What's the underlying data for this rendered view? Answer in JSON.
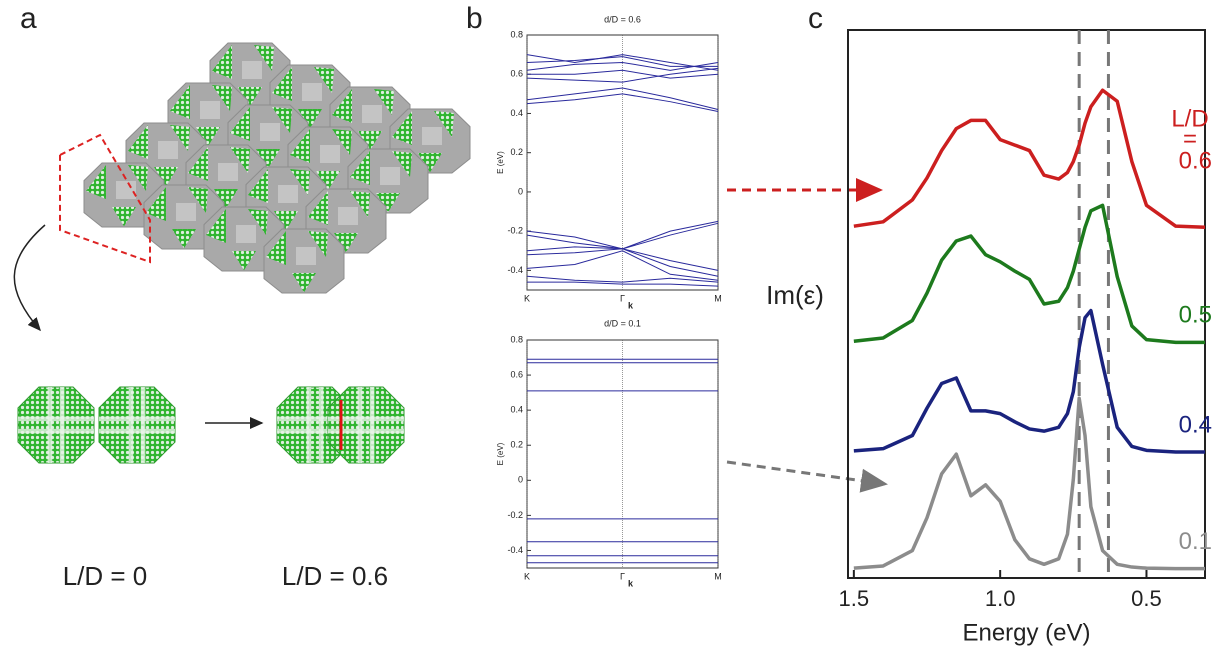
{
  "panel_labels": [
    "a",
    "b",
    "c"
  ],
  "panel_a": {
    "labels": [
      "L/D = 0",
      "L/D = 0.6"
    ]
  },
  "chart_data": [
    {
      "type": "line",
      "title": "d/D = 0.6",
      "y_label": "E (eV)",
      "x_label": "k",
      "color": "#2a2a9c",
      "grid": "x",
      "x": [
        0,
        0.5,
        1,
        1.5,
        2
      ],
      "xlim": [
        0,
        2
      ],
      "xticks": [
        {
          "value": 0,
          "label": "K"
        },
        {
          "value": 1,
          "label": "Γ"
        },
        {
          "value": 2,
          "label": "M"
        }
      ],
      "ylim": [
        -0.5,
        0.8
      ],
      "yticks": [
        -0.4,
        -0.2,
        0,
        0.2,
        0.4,
        0.6,
        0.8
      ],
      "series": [
        {
          "values": [
            0.7,
            0.66,
            0.7,
            0.66,
            0.62
          ]
        },
        {
          "values": [
            0.66,
            0.67,
            0.69,
            0.64,
            0.64
          ]
        },
        {
          "values": [
            0.62,
            0.65,
            0.66,
            0.62,
            0.66
          ]
        },
        {
          "values": [
            0.6,
            0.6,
            0.62,
            0.58,
            0.6
          ]
        },
        {
          "values": [
            0.58,
            0.57,
            0.56,
            0.6,
            0.63
          ]
        },
        {
          "values": [
            0.47,
            0.5,
            0.53,
            0.48,
            0.42
          ]
        },
        {
          "values": [
            0.45,
            0.47,
            0.5,
            0.46,
            0.41
          ]
        },
        {
          "values": [
            -0.2,
            -0.23,
            -0.29,
            -0.2,
            -0.15
          ]
        },
        {
          "values": [
            -0.22,
            -0.26,
            -0.29,
            -0.22,
            -0.16
          ]
        },
        {
          "values": [
            -0.3,
            -0.28,
            -0.29,
            -0.35,
            -0.4
          ]
        },
        {
          "values": [
            -0.32,
            -0.31,
            -0.29,
            -0.38,
            -0.43
          ]
        },
        {
          "values": [
            -0.39,
            -0.37,
            -0.3,
            -0.42,
            -0.45
          ]
        },
        {
          "values": [
            -0.43,
            -0.45,
            -0.46,
            -0.44,
            -0.46
          ]
        },
        {
          "values": [
            -0.46,
            -0.46,
            -0.47,
            -0.47,
            -0.48
          ]
        }
      ]
    },
    {
      "type": "line",
      "title": "d/D = 0.1",
      "y_label": "E (eV)",
      "x_label": "k",
      "color": "#2a2a9c",
      "grid": "x",
      "x": [
        0,
        1,
        2
      ],
      "xlim": [
        0,
        2
      ],
      "xticks": [
        {
          "value": 0,
          "label": "K"
        },
        {
          "value": 1,
          "label": "Γ"
        },
        {
          "value": 2,
          "label": "M"
        }
      ],
      "ylim": [
        -0.5,
        0.8
      ],
      "yticks": [
        -0.4,
        -0.2,
        0,
        0.2,
        0.4,
        0.6,
        0.8
      ],
      "series": [
        {
          "values": [
            0.69,
            0.69,
            0.69
          ]
        },
        {
          "values": [
            0.67,
            0.67,
            0.67
          ]
        },
        {
          "values": [
            0.51,
            0.51,
            0.51
          ]
        },
        {
          "values": [
            -0.22,
            -0.22,
            -0.22
          ]
        },
        {
          "values": [
            -0.35,
            -0.35,
            -0.35
          ]
        },
        {
          "values": [
            -0.43,
            -0.43,
            -0.43
          ]
        },
        {
          "values": [
            -0.47,
            -0.47,
            -0.47
          ]
        }
      ]
    },
    {
      "type": "spectra",
      "y_label": "Im(ε)",
      "x_label": "Energy (eV)",
      "annotation": [
        "L/D",
        "="
      ],
      "x": [
        1.5,
        1.4,
        1.3,
        1.25,
        1.2,
        1.15,
        1.1,
        1.05,
        1.0,
        0.95,
        0.9,
        0.85,
        0.8,
        0.77,
        0.75,
        0.73,
        0.71,
        0.69,
        0.65,
        0.6,
        0.55,
        0.5,
        0.4,
        0.3
      ],
      "xlim": [
        1.52,
        0.3
      ],
      "xticks": [
        1.5,
        {
          "value": 1.0,
          "label": "1.0"
        },
        0.5
      ],
      "ylim": [
        0,
        10
      ],
      "vlines": [
        0.73,
        0.63
      ],
      "series": [
        {
          "name": "0.6",
          "color": "#cc1f1f",
          "values": [
            6.42,
            6.5,
            6.9,
            7.3,
            7.8,
            8.2,
            8.35,
            8.35,
            8.0,
            7.9,
            7.8,
            7.35,
            7.28,
            7.4,
            7.6,
            7.9,
            8.3,
            8.6,
            8.9,
            8.7,
            7.6,
            6.8,
            6.42,
            6.4
          ]
        },
        {
          "name": "0.5",
          "color": "#1d7a1d",
          "values": [
            4.32,
            4.38,
            4.7,
            5.2,
            5.8,
            6.15,
            6.24,
            5.9,
            5.77,
            5.6,
            5.45,
            5.0,
            5.05,
            5.3,
            5.6,
            6.0,
            6.4,
            6.7,
            6.8,
            5.5,
            4.6,
            4.35,
            4.3,
            4.3
          ]
        },
        {
          "name": "0.4",
          "color": "#1a237e",
          "values": [
            2.32,
            2.36,
            2.6,
            3.1,
            3.55,
            3.65,
            3.05,
            3.05,
            3.0,
            2.85,
            2.72,
            2.68,
            2.75,
            3.0,
            3.4,
            4.2,
            4.75,
            4.88,
            3.9,
            2.75,
            2.4,
            2.33,
            2.3,
            2.3
          ]
        },
        {
          "name": "0.1",
          "color": "#8c8c8c",
          "values": [
            0.18,
            0.22,
            0.5,
            1.1,
            1.9,
            2.26,
            1.5,
            1.7,
            1.4,
            0.7,
            0.35,
            0.25,
            0.35,
            0.8,
            1.8,
            3.28,
            2.6,
            1.3,
            0.5,
            0.25,
            0.2,
            0.18,
            0.17,
            0.17
          ]
        }
      ]
    }
  ]
}
